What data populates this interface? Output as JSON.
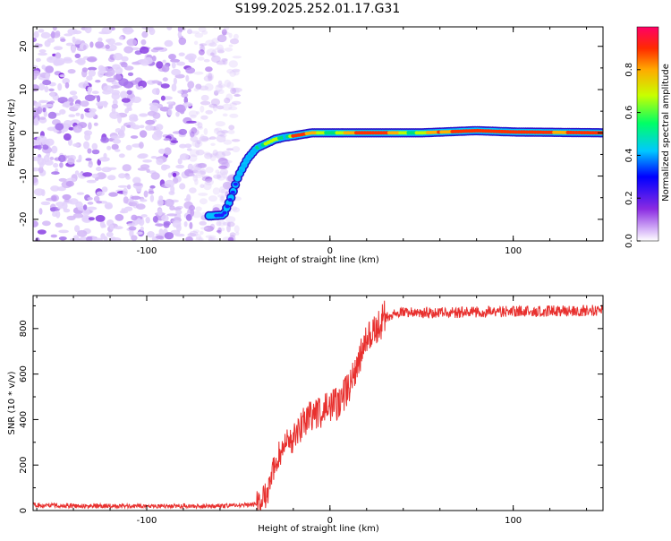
{
  "title": "S199.2025.252.01.17.G31",
  "chart_data": [
    {
      "type": "heatmap",
      "title": "S199.2025.252.01.17.G31",
      "xlabel": "Height of straight line (km)",
      "ylabel": "Frequency (Hz)",
      "xlim": [
        -162,
        149
      ],
      "ylim": [
        -25,
        24.5
      ],
      "xticks": [
        -100,
        0,
        100
      ],
      "yticks": [
        -20,
        -10,
        0,
        10,
        20
      ],
      "ridge_trend": {
        "x": [
          -65,
          -58,
          -54,
          -50,
          -45,
          -40,
          -35,
          -30,
          -25,
          -20,
          -10,
          0,
          10,
          20,
          50,
          80,
          100,
          149
        ],
        "freq_hz": [
          -19.2,
          -19.0,
          -15,
          -10,
          -6,
          -3.5,
          -2.5,
          -1.5,
          -1,
          -0.7,
          0,
          0,
          0,
          0,
          0,
          0.5,
          0.2,
          0
        ]
      },
      "noise_region_x": [
        -162,
        -60
      ],
      "colorbar": {
        "label": "Normalized spectral amplitude",
        "range": [
          0,
          1
        ],
        "ticks": [
          0.0,
          0.2,
          0.4,
          0.6,
          0.8
        ]
      }
    },
    {
      "type": "line",
      "xlabel": "Height of straight line (km)",
      "ylabel": "SNR (10 * v/v)",
      "xlim": [
        -162,
        149
      ],
      "ylim": [
        0,
        945
      ],
      "xticks": [
        -100,
        0,
        100
      ],
      "yticks": [
        0,
        200,
        400,
        600,
        800
      ],
      "color": "#e8302e",
      "trend": {
        "x": [
          -162,
          -140,
          -100,
          -60,
          -45,
          -40,
          -35,
          -32,
          -30,
          -25,
          -20,
          -15,
          -10,
          -5,
          0,
          5,
          10,
          15,
          20,
          25,
          30,
          40,
          60,
          100,
          149
        ],
        "y": [
          25,
          20,
          20,
          20,
          25,
          30,
          60,
          120,
          220,
          280,
          320,
          380,
          420,
          430,
          460,
          470,
          540,
          640,
          740,
          800,
          850,
          870,
          870,
          875,
          880
        ]
      }
    }
  ]
}
